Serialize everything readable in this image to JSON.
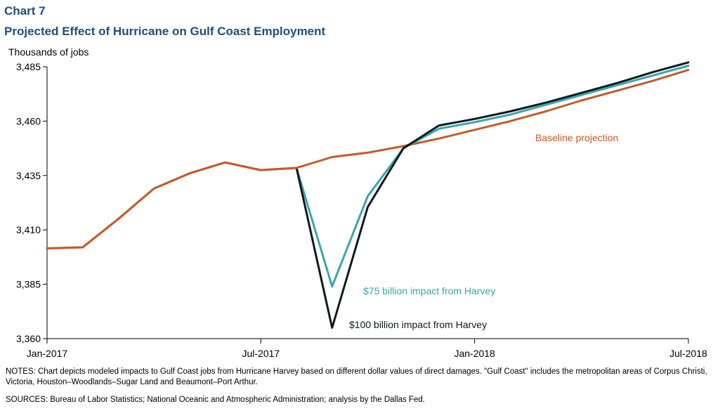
{
  "header": {
    "chart_number": "Chart 7",
    "title": "Projected Effect of Hurricane on Gulf Coast Employment",
    "y_unit": "Thousands  of jobs"
  },
  "footer": {
    "notes": "NOTES:  Chart depicts modeled impacts to Gulf Coast jobs from Hurricane Harvey based on different dollar values of direct damages. \"Gulf Coast\" includes the metropolitan  areas of Corpus Christi,  Victoria,  Houston–Woodlands–Sugar  Land and Beaumont–Port  Arthur.",
    "sources": "SOURCES:  Bureau of Labor Statistics;  National Oceanic and Atmospheric Administration;  analysis by the Dallas Fed."
  },
  "colors": {
    "baseline": "#c55a28",
    "impact_75": "#3aa6ad",
    "impact_100": "#0d1b1e",
    "axis": "#000000",
    "title": "#1f4e79"
  },
  "chart_data": {
    "type": "line",
    "title": "Projected Effect of Hurricane on Gulf Coast Employment",
    "ylabel": "Thousands  of jobs",
    "xlabel": "",
    "ylim": [
      3360,
      3485
    ],
    "yticks": [
      "3,360",
      "3,385",
      "3,410",
      "3,435",
      "3,460",
      "3,485"
    ],
    "ytick_values": [
      3360,
      3385,
      3410,
      3435,
      3460,
      3485
    ],
    "xticks": [
      "Jan-2017",
      "Jul-2017",
      "Jan-2018",
      "Jul-2018"
    ],
    "xtick_positions": [
      0,
      6,
      12,
      18
    ],
    "x": [
      "Jan-2017",
      "Feb-2017",
      "Mar-2017",
      "Apr-2017",
      "May-2017",
      "Jun-2017",
      "Jul-2017",
      "Aug-2017",
      "Sep-2017",
      "Oct-2017",
      "Nov-2017",
      "Dec-2017",
      "Jan-2018",
      "Feb-2018",
      "Mar-2018",
      "Apr-2018",
      "May-2018",
      "Jun-2018",
      "Jul-2018"
    ],
    "grid": false,
    "series": [
      {
        "name": "Baseline  projection",
        "color": "#c55a28",
        "values": [
          3401.5,
          3402.0,
          3415.0,
          3429.0,
          3436.0,
          3441.0,
          3437.5,
          3438.5,
          3443.5,
          3445.5,
          3448.5,
          3452.0,
          3456.0,
          3460.0,
          3464.5,
          3469.5,
          3474.0,
          3478.5,
          3483.5
        ]
      },
      {
        "name": "$75 billion  impact from Harvey",
        "color": "#3aa6ad",
        "values": [
          null,
          null,
          null,
          null,
          null,
          null,
          null,
          3438.5,
          3384.0,
          3425.5,
          3447.5,
          3456.5,
          3459.5,
          3463.0,
          3467.5,
          3472.0,
          3476.5,
          3481.0,
          3485.5
        ]
      },
      {
        "name": "$100 billion  impact from Harvey",
        "color": "#0d1b1e",
        "values": [
          null,
          null,
          null,
          null,
          null,
          null,
          null,
          3438.5,
          3365.0,
          3420.5,
          3447.5,
          3458.0,
          3461.0,
          3464.5,
          3468.5,
          3473.0,
          3477.5,
          3482.5,
          3487.0
        ]
      }
    ]
  }
}
